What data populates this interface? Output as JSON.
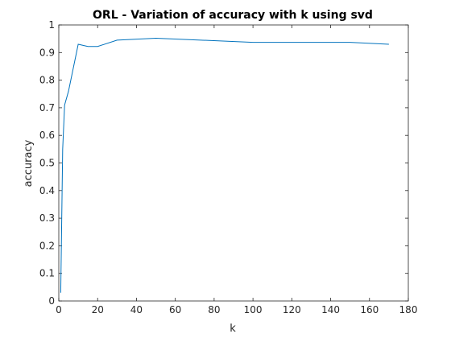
{
  "chart_data": {
    "type": "line",
    "title": "ORL - Variation of accuracy with k using svd",
    "xlabel": "k",
    "ylabel": "accuracy",
    "xlim": [
      0,
      180
    ],
    "ylim": [
      0,
      1
    ],
    "xticks": [
      0,
      20,
      40,
      60,
      80,
      100,
      120,
      140,
      160,
      180
    ],
    "yticks": [
      0,
      0.1,
      0.2,
      0.3,
      0.4,
      0.5,
      0.6,
      0.7,
      0.8,
      0.9,
      1
    ],
    "xtick_labels": [
      "0",
      "20",
      "40",
      "60",
      "80",
      "100",
      "120",
      "140",
      "160",
      "180"
    ],
    "ytick_labels": [
      "0",
      "0.1",
      "0.2",
      "0.3",
      "0.4",
      "0.5",
      "0.6",
      "0.7",
      "0.8",
      "0.9",
      "1"
    ],
    "grid": false,
    "series": [
      {
        "color": "#0072bd",
        "x": [
          1,
          2,
          3,
          5,
          10,
          15,
          20,
          30,
          50,
          100,
          150,
          170
        ],
        "y": [
          0.03,
          0.55,
          0.71,
          0.76,
          0.93,
          0.922,
          0.922,
          0.945,
          0.952,
          0.937,
          0.937,
          0.93
        ]
      }
    ]
  }
}
